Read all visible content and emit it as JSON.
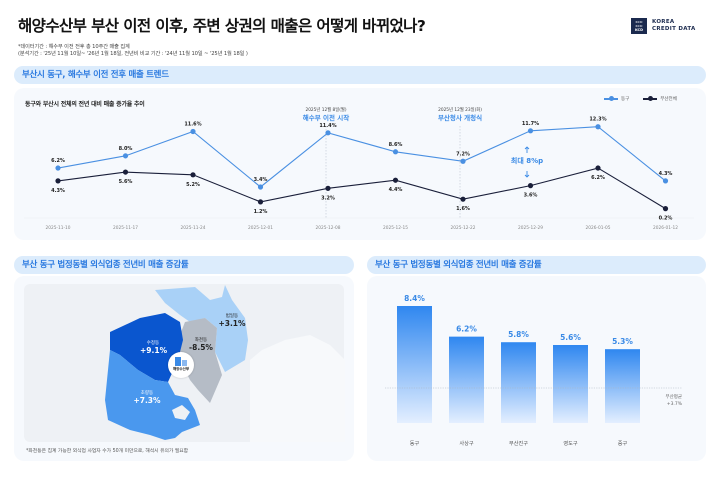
{
  "header": {
    "title": "해양수산부 부산 이전 이후, 주변 상권의 매출은 어떻게 바뀌었나?",
    "note_line1": "*데이터기간 : 해수부 이전 전후 총 10주간 매출 집계",
    "note_line2": "(분석기간 : '25년 11월 10일~ '26년 1월 18일, 전년비 비교 기간 : '24년 11월 10일 ~ '25년 1월 18일 )",
    "logo": {
      "box_lines": [
        "KCD",
        "KCD",
        "KCD"
      ],
      "line1": "KOREA",
      "line2": "CREDIT DATA"
    }
  },
  "section_trend": {
    "heading": "부산시 동구, 해수부 이전 전후 매출 트렌드",
    "subtitle": "동구와 부산시 전체의 전년 대비 매출 증가율 추이",
    "legend": [
      {
        "label": "동구",
        "color": "#4a90e2"
      },
      {
        "label": "부산전체",
        "color": "#1a1f3a"
      }
    ],
    "annotation_1": {
      "date": "2025년 12월 8일(월)",
      "label": "해수부 이전 시작"
    },
    "annotation_2": {
      "date": "2025년 12월 23일(화)",
      "label": "부산청사 개청식"
    },
    "gap_label": "최대 8%p"
  },
  "section_map": {
    "heading": "부산 동구 법정동별 외식업종 전년비 매출 증감률",
    "regions": [
      {
        "name": "수정동",
        "value": "+9.1%"
      },
      {
        "name": "좌천동",
        "value": "-8.5%"
      },
      {
        "name": "범일동",
        "value": "+3.1%"
      },
      {
        "name": "초량동",
        "value": "+7.3%"
      }
    ],
    "marker_label": "해양수산부",
    "footnote": "*좌천동은 집계 가능한 외식업 사업자 수가 50개 미만으로, 해석시 유의가 필요함"
  },
  "section_bar": {
    "heading": "부산 동구 법정동별 외식업종 전년비 매출 증감률",
    "avg_label_1": "부산평균",
    "avg_label_2": "+3.7%"
  },
  "chart_data": [
    {
      "type": "line",
      "title": "동구와 부산시 전체의 전년 대비 매출 증가율 추이",
      "x": [
        "2025-11-10",
        "2025-11-17",
        "2025-11-24",
        "2025-12-01",
        "2025-12-08",
        "2025-12-15",
        "2025-12-22",
        "2025-12-29",
        "2026-01-05",
        "2026-01-12"
      ],
      "series": [
        {
          "name": "동구",
          "color": "#4a90e2",
          "values": [
            6.2,
            8.0,
            11.6,
            3.4,
            11.4,
            8.6,
            7.2,
            11.7,
            12.3,
            4.3
          ]
        },
        {
          "name": "부산전체",
          "color": "#1a1f3a",
          "values": [
            4.3,
            5.6,
            5.2,
            1.2,
            3.2,
            4.4,
            1.6,
            3.6,
            6.2,
            0.2
          ]
        }
      ],
      "annotations": [
        {
          "x": "2025-12-08",
          "text": "2025년 12월 8일(월) 해수부 이전 시작"
        },
        {
          "x": "2025-12-22",
          "text": "2025년 12월 23일(화) 부산청사 개청식"
        },
        {
          "x": "2025-12-29",
          "text": "최대 8%p"
        }
      ],
      "grid": false,
      "legend_position": "top-right",
      "unit": "%"
    },
    {
      "type": "bar",
      "title": "부산 동구 법정동별 외식업종 전년비 매출 증감률",
      "categories": [
        "동구",
        "사상구",
        "부산진구",
        "영도구",
        "중구"
      ],
      "values": [
        8.4,
        6.2,
        5.8,
        5.6,
        5.3
      ],
      "reference_line": {
        "label": "부산평균",
        "value": 3.7
      },
      "unit": "%"
    }
  ]
}
